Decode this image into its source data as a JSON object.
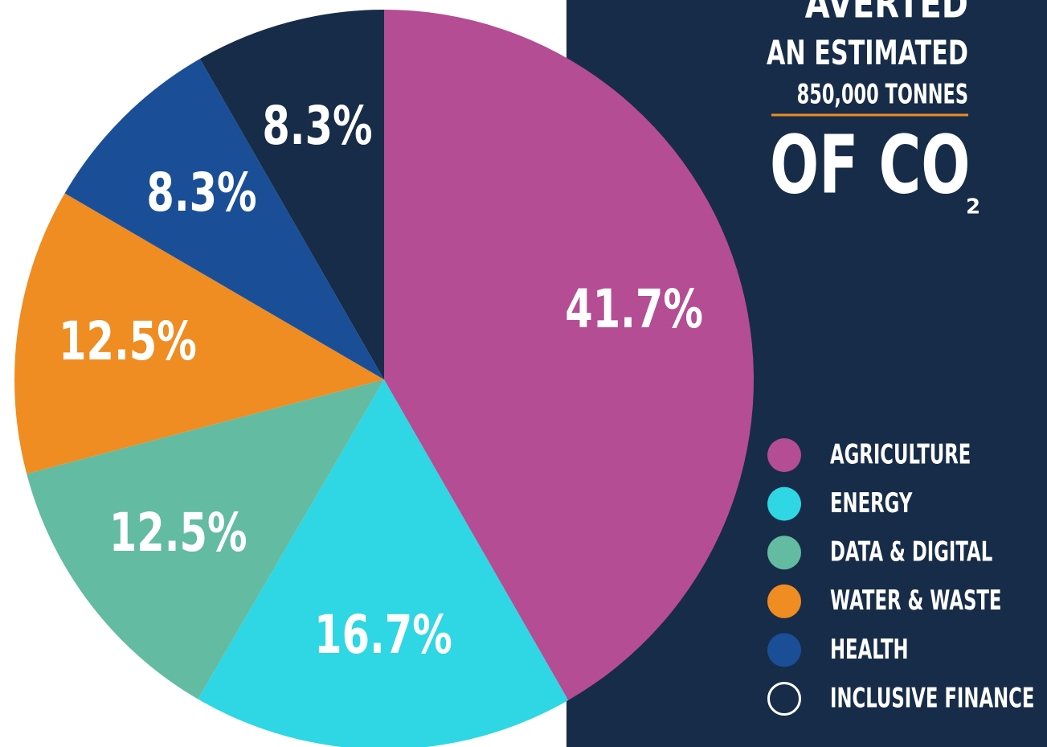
{
  "chart_data": {
    "type": "pie",
    "annotations": [
      "AVERTED",
      "AN ESTIMATED",
      "850,000 TONNES",
      "OF CO",
      "2"
    ],
    "categories": [
      "AGRICULTURE",
      "ENERGY",
      "DATA & DIGITAL",
      "WATER & WASTE",
      "HEALTH",
      "INCLUSIVE FINANCE"
    ],
    "values": [
      41.7,
      16.7,
      12.5,
      12.5,
      8.3,
      8.3
    ],
    "value_labels": [
      "41.7%",
      "16.7%",
      "12.5%",
      "12.5%",
      "8.3%",
      "8.3%"
    ],
    "colors": [
      "#b44d94",
      "#2fd6e4",
      "#63bba2",
      "#ef8c22",
      "#1a4f98",
      "#172c48"
    ],
    "legend": "right"
  }
}
